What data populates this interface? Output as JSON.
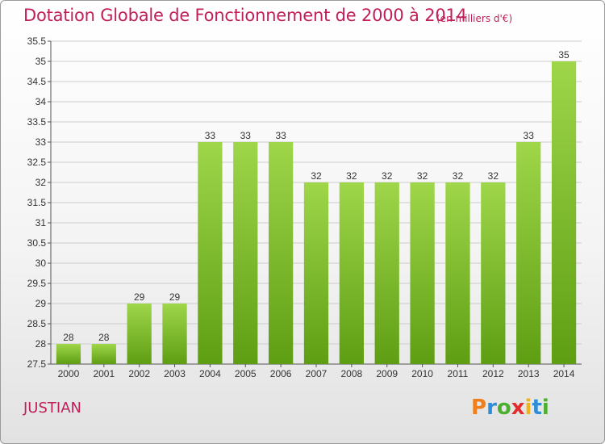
{
  "header": {
    "title": "Dotation Globale de Fonctionnement de 2000 à 2014",
    "unit": "(en milliers d'€)"
  },
  "footer": {
    "commune": "JUSTIAN",
    "logo": "Proxiti"
  },
  "colors": {
    "title": "#c0205a",
    "bar_light": "#9fd64a",
    "bar_dark": "#5e9e13",
    "grid": "#cccccc",
    "logo_letters": [
      "#f07f1b",
      "#2f8ed8",
      "#4caf2f",
      "#e32d2d",
      "#f0b41b",
      "#2f8ed8",
      "#4caf2f"
    ]
  },
  "chart_data": {
    "type": "bar",
    "title": "Dotation Globale de Fonctionnement de 2000 à 2014",
    "subtitle": "(en milliers d'€)",
    "categories": [
      "2000",
      "2001",
      "2002",
      "2003",
      "2004",
      "2005",
      "2006",
      "2007",
      "2008",
      "2009",
      "2010",
      "2011",
      "2012",
      "2013",
      "2014"
    ],
    "values": [
      28,
      28,
      29,
      29,
      33,
      33,
      33,
      32,
      32,
      32,
      32,
      32,
      32,
      33,
      35
    ],
    "ylim": [
      27.5,
      35.5
    ],
    "yticks": [
      "27.5",
      "28",
      "28.5",
      "29",
      "29.5",
      "30",
      "30.5",
      "31",
      "31.5",
      "32",
      "32.5",
      "33",
      "33.5",
      "34",
      "34.5",
      "35",
      "35.5"
    ],
    "grid": true,
    "xlabel": "",
    "ylabel": ""
  }
}
